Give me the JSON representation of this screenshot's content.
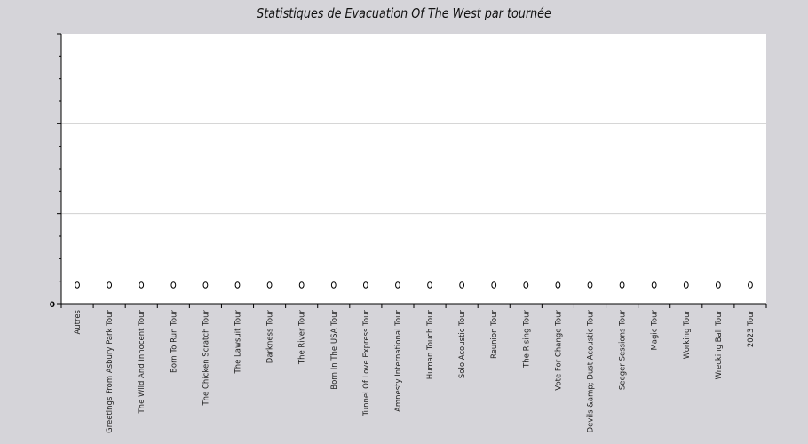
{
  "chart_data": {
    "type": "scatter",
    "title": "Statistiques de Evacuation Of The West par tournée",
    "xlabel": "",
    "ylabel": "",
    "categories": [
      "Autres",
      "Greetings From Asbury Park Tour",
      "The Wild And Innocent Tour",
      "Born To Run Tour",
      "The Chicken Scratch Tour",
      "The Lawsuit Tour",
      "Darkness Tour",
      "The River Tour",
      "Born In The USA Tour",
      "Tunnel Of Love Express Tour",
      "Amnesty International Tour",
      "Human Touch Tour",
      "Solo Acoustic Tour",
      "Reunion Tour",
      "The Rising Tour",
      "Vote For Change Tour",
      "Devils &amp; Dust Acoustic Tour",
      "Seeger Sessions Tour",
      "Magic Tour",
      "Working Tour",
      "Wrecking Ball Tour",
      "2023 Tour"
    ],
    "values": [
      0,
      0,
      0,
      0,
      0,
      0,
      0,
      0,
      0,
      0,
      0,
      0,
      0,
      0,
      0,
      0,
      0,
      0,
      0,
      0,
      0,
      0
    ],
    "y_tick_labels": [
      "0"
    ],
    "ylim": [
      0,
      1
    ],
    "grid": true,
    "colors": {
      "background": "#d5d4d9",
      "plot_area": "#ffffff",
      "gridline": "#d0d0d0",
      "marker_stroke": "#000000",
      "marker_fill": "#ffffff"
    }
  }
}
